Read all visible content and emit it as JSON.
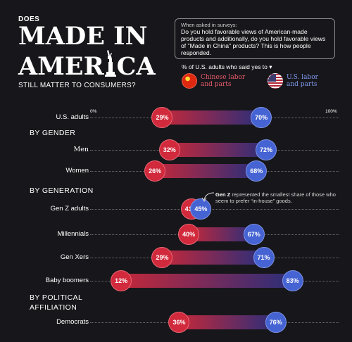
{
  "header": {
    "kicker": "DOES",
    "line1": "MADE IN",
    "line2a": "AMER",
    "line2b": "CA",
    "subhead": "STILL MATTER TO CONSUMERS?"
  },
  "survey": {
    "lead": "When asked in surveys:",
    "question": "Do you hold favorable views of American-made products and additionally, do you hold favorable views of \"Made in China\" products? This is how people responded."
  },
  "legend": {
    "title": "% of U.S. adults who said yes to ▾",
    "china": "Chinese labor and parts",
    "us": "U.S. labor and parts"
  },
  "annotation": {
    "bold": "Gen Z",
    "text": " represented the smallest share of those who seem to prefer “in-house” goods."
  },
  "colors": {
    "china": "#d12a3c",
    "us": "#4563d2",
    "background": "#17171b"
  },
  "chart_data": {
    "type": "dumbbell",
    "xlim": [
      0,
      100
    ],
    "axis_min_label": "0%",
    "axis_max_label": "100%",
    "series": [
      {
        "name": "Chinese labor and parts",
        "color": "#d12a3c"
      },
      {
        "name": "U.S. labor and parts",
        "color": "#4563d2"
      }
    ],
    "sections": [
      "BY GENDER",
      "BY GENERATION",
      "BY POLITICAL AFFILIATION"
    ],
    "rows": [
      {
        "label": "U.S. adults",
        "section": "",
        "china": 29,
        "us": 70
      },
      {
        "label": "Men",
        "section": "BY GENDER",
        "china": 32,
        "us": 72
      },
      {
        "label": "Women",
        "section": "BY GENDER",
        "china": 26,
        "us": 68
      },
      {
        "label": "Gen Z adults",
        "section": "BY GENERATION",
        "china": 41,
        "us": 45
      },
      {
        "label": "Millennials",
        "section": "BY GENERATION",
        "china": 40,
        "us": 67
      },
      {
        "label": "Gen Xers",
        "section": "BY GENERATION",
        "china": 29,
        "us": 71
      },
      {
        "label": "Baby boomers",
        "section": "BY GENERATION",
        "china": 12,
        "us": 83
      },
      {
        "label": "Democrats",
        "section": "BY POLITICAL AFFILIATION",
        "china": 36,
        "us": 76
      }
    ]
  }
}
